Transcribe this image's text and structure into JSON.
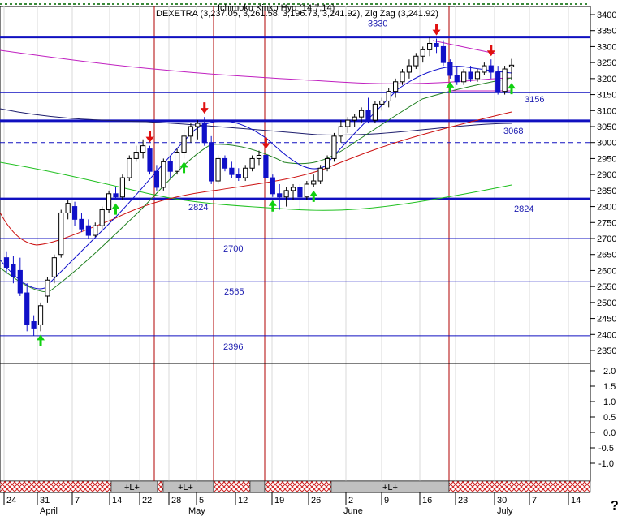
{
  "chart_data": {
    "type": "candlestick",
    "title": "DEXETRA (3,237.05, 3,261.58, 3,196.73, 3,241.92), Zig Zag (3,241.92)",
    "overlapping_header": "Ichimoku Kinko Hyo (14,7,14)",
    "ylim": [
      2320,
      3420
    ],
    "yticks": [
      2350,
      2400,
      2450,
      2500,
      2550,
      2600,
      2650,
      2700,
      2750,
      2800,
      2850,
      2900,
      2950,
      3000,
      3050,
      3100,
      3150,
      3200,
      3250,
      3300,
      3350,
      3400
    ],
    "xticks": [
      "24",
      "31",
      "7",
      "14",
      "22",
      "28",
      "5",
      "12",
      "19",
      "26",
      "2",
      "9",
      "16",
      "23",
      "30",
      "7",
      "14"
    ],
    "months": [
      "April",
      "May",
      "June",
      "July"
    ],
    "levels": [
      {
        "value": 3330,
        "label": "3330",
        "style": "thick"
      },
      {
        "value": 3156,
        "label": "3156",
        "style": "thin"
      },
      {
        "value": 3068,
        "label": "3068",
        "style": "thick"
      },
      {
        "value": 3000,
        "label": "",
        "style": "dashed"
      },
      {
        "value": 2824,
        "label": "2824",
        "style": "thick"
      },
      {
        "value": 2700,
        "label": "2700",
        "style": "thin"
      },
      {
        "value": 2565,
        "label": "2565",
        "style": "thin"
      },
      {
        "value": 2396,
        "label": "2396",
        "style": "thin"
      }
    ],
    "level_label_2824_right": "2824",
    "indicator": {
      "ylim": [
        -1.2,
        2.2
      ],
      "yticks": [
        "2.0",
        "1.5",
        "1.0",
        "0.5",
        "0.0",
        "-0.5",
        "-1.0"
      ]
    },
    "signal_strip_labels": [
      "+L+",
      "+L+",
      "+L+"
    ],
    "corner_mark": "?",
    "candles": [
      {
        "o": 2640,
        "h": 2660,
        "l": 2590,
        "c": 2610
      },
      {
        "o": 2620,
        "h": 2645,
        "l": 2560,
        "c": 2580
      },
      {
        "o": 2600,
        "h": 2640,
        "l": 2520,
        "c": 2530
      },
      {
        "o": 2530,
        "h": 2560,
        "l": 2410,
        "c": 2430
      },
      {
        "o": 2440,
        "h": 2460,
        "l": 2396,
        "c": 2420
      },
      {
        "o": 2430,
        "h": 2500,
        "l": 2410,
        "c": 2490
      },
      {
        "o": 2520,
        "h": 2580,
        "l": 2500,
        "c": 2570
      },
      {
        "o": 2580,
        "h": 2650,
        "l": 2560,
        "c": 2640
      },
      {
        "o": 2650,
        "h": 2790,
        "l": 2640,
        "c": 2780
      },
      {
        "o": 2780,
        "h": 2820,
        "l": 2760,
        "c": 2810
      },
      {
        "o": 2800,
        "h": 2815,
        "l": 2740,
        "c": 2760
      },
      {
        "o": 2760,
        "h": 2780,
        "l": 2720,
        "c": 2730
      },
      {
        "o": 2740,
        "h": 2760,
        "l": 2700,
        "c": 2710
      },
      {
        "o": 2710,
        "h": 2750,
        "l": 2705,
        "c": 2740
      },
      {
        "o": 2740,
        "h": 2800,
        "l": 2730,
        "c": 2790
      },
      {
        "o": 2790,
        "h": 2850,
        "l": 2780,
        "c": 2840
      },
      {
        "o": 2840,
        "h": 2860,
        "l": 2820,
        "c": 2830
      },
      {
        "o": 2830,
        "h": 2900,
        "l": 2820,
        "c": 2890
      },
      {
        "o": 2890,
        "h": 2960,
        "l": 2880,
        "c": 2950
      },
      {
        "o": 2950,
        "h": 2990,
        "l": 2940,
        "c": 2970
      },
      {
        "o": 2970,
        "h": 3010,
        "l": 2950,
        "c": 2990
      },
      {
        "o": 2980,
        "h": 2990,
        "l": 2900,
        "c": 2910
      },
      {
        "o": 2910,
        "h": 2930,
        "l": 2850,
        "c": 2860
      },
      {
        "o": 2860,
        "h": 2950,
        "l": 2850,
        "c": 2940
      },
      {
        "o": 2940,
        "h": 2960,
        "l": 2890,
        "c": 2910
      },
      {
        "o": 2910,
        "h": 2980,
        "l": 2900,
        "c": 2970
      },
      {
        "o": 2970,
        "h": 3040,
        "l": 2950,
        "c": 3020
      },
      {
        "o": 3020,
        "h": 3060,
        "l": 3000,
        "c": 3050
      },
      {
        "o": 3050,
        "h": 3070,
        "l": 3010,
        "c": 3060
      },
      {
        "o": 3060,
        "h": 3080,
        "l": 2990,
        "c": 3000
      },
      {
        "o": 3000,
        "h": 3020,
        "l": 2870,
        "c": 2880
      },
      {
        "o": 2880,
        "h": 2960,
        "l": 2870,
        "c": 2950
      },
      {
        "o": 2950,
        "h": 2960,
        "l": 2910,
        "c": 2920
      },
      {
        "o": 2920,
        "h": 2940,
        "l": 2890,
        "c": 2900
      },
      {
        "o": 2900,
        "h": 2920,
        "l": 2880,
        "c": 2890
      },
      {
        "o": 2890,
        "h": 2930,
        "l": 2880,
        "c": 2920
      },
      {
        "o": 2920,
        "h": 2960,
        "l": 2910,
        "c": 2950
      },
      {
        "o": 2950,
        "h": 2975,
        "l": 2930,
        "c": 2960
      },
      {
        "o": 2960,
        "h": 2970,
        "l": 2880,
        "c": 2890
      },
      {
        "o": 2890,
        "h": 2900,
        "l": 2830,
        "c": 2840
      },
      {
        "o": 2840,
        "h": 2870,
        "l": 2790,
        "c": 2830
      },
      {
        "o": 2830,
        "h": 2860,
        "l": 2800,
        "c": 2850
      },
      {
        "o": 2850,
        "h": 2870,
        "l": 2820,
        "c": 2860
      },
      {
        "o": 2860,
        "h": 2870,
        "l": 2790,
        "c": 2830
      },
      {
        "o": 2830,
        "h": 2880,
        "l": 2820,
        "c": 2870
      },
      {
        "o": 2870,
        "h": 2900,
        "l": 2860,
        "c": 2880
      },
      {
        "o": 2880,
        "h": 2930,
        "l": 2870,
        "c": 2920
      },
      {
        "o": 2920,
        "h": 2960,
        "l": 2910,
        "c": 2950
      },
      {
        "o": 2950,
        "h": 3030,
        "l": 2940,
        "c": 3020
      },
      {
        "o": 3020,
        "h": 3070,
        "l": 3000,
        "c": 3050
      },
      {
        "o": 3050,
        "h": 3080,
        "l": 3030,
        "c": 3070
      },
      {
        "o": 3070,
        "h": 3090,
        "l": 3050,
        "c": 3080
      },
      {
        "o": 3080,
        "h": 3110,
        "l": 3060,
        "c": 3100
      },
      {
        "o": 3100,
        "h": 3140,
        "l": 3060,
        "c": 3070
      },
      {
        "o": 3070,
        "h": 3130,
        "l": 3060,
        "c": 3120
      },
      {
        "o": 3120,
        "h": 3140,
        "l": 3100,
        "c": 3130
      },
      {
        "o": 3130,
        "h": 3170,
        "l": 3110,
        "c": 3160
      },
      {
        "o": 3160,
        "h": 3200,
        "l": 3140,
        "c": 3190
      },
      {
        "o": 3190,
        "h": 3230,
        "l": 3180,
        "c": 3220
      },
      {
        "o": 3220,
        "h": 3260,
        "l": 3200,
        "c": 3240
      },
      {
        "o": 3240,
        "h": 3280,
        "l": 3230,
        "c": 3270
      },
      {
        "o": 3270,
        "h": 3300,
        "l": 3250,
        "c": 3290
      },
      {
        "o": 3290,
        "h": 3330,
        "l": 3270,
        "c": 3310
      },
      {
        "o": 3310,
        "h": 3325,
        "l": 3280,
        "c": 3300
      },
      {
        "o": 3300,
        "h": 3320,
        "l": 3240,
        "c": 3250
      },
      {
        "o": 3250,
        "h": 3260,
        "l": 3200,
        "c": 3210
      },
      {
        "o": 3210,
        "h": 3240,
        "l": 3180,
        "c": 3190
      },
      {
        "o": 3190,
        "h": 3230,
        "l": 3180,
        "c": 3220
      },
      {
        "o": 3220,
        "h": 3240,
        "l": 3190,
        "c": 3200
      },
      {
        "o": 3200,
        "h": 3230,
        "l": 3190,
        "c": 3220
      },
      {
        "o": 3220,
        "h": 3250,
        "l": 3210,
        "c": 3240
      },
      {
        "o": 3240,
        "h": 3260,
        "l": 3200,
        "c": 3220
      },
      {
        "o": 3220,
        "h": 3240,
        "l": 3150,
        "c": 3160
      },
      {
        "o": 3160,
        "h": 3240,
        "l": 3150,
        "c": 3230
      },
      {
        "o": 3237.05,
        "h": 3261.58,
        "l": 3196.73,
        "c": 3241.92
      }
    ],
    "sell_signal_bar_index": [
      21,
      29,
      38,
      63,
      71
    ],
    "buy_signal_bar_index": [
      5,
      16,
      26,
      39,
      45,
      65,
      74
    ]
  }
}
